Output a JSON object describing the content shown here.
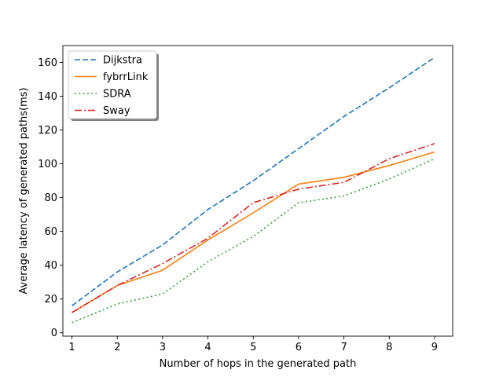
{
  "chart_data": {
    "type": "line",
    "title": "",
    "xlabel": "Number of hops in the generated path",
    "ylabel": "Average latency of generated paths(ms)",
    "x": [
      1,
      2,
      3,
      4,
      5,
      6,
      7,
      8,
      9
    ],
    "xlim": [
      0.8,
      9.4
    ],
    "ylim": [
      -2,
      170
    ],
    "xticks": [
      "1",
      "2",
      "3",
      "4",
      "5",
      "6",
      "7",
      "8",
      "9"
    ],
    "yticks": [
      "0",
      "20",
      "40",
      "60",
      "80",
      "100",
      "120",
      "140",
      "160"
    ],
    "grid": false,
    "legend_position": "top-left",
    "series": [
      {
        "name": "Dijkstra",
        "color": "#1f77b4",
        "dash": "dashed",
        "values": [
          16,
          36,
          52,
          73,
          90,
          109,
          128,
          145,
          163
        ]
      },
      {
        "name": "fybrrLink",
        "color": "#ff7f0e",
        "dash": "solid",
        "values": [
          12,
          28,
          37,
          55,
          71,
          88,
          92,
          99,
          107
        ]
      },
      {
        "name": "SDRA",
        "color": "#2ca02c",
        "dash": "dotted",
        "values": [
          6,
          17,
          23,
          42,
          57,
          77,
          81,
          91,
          103
        ]
      },
      {
        "name": "Sway",
        "color": "#d62728",
        "dash": "dashdot",
        "values": [
          12,
          28,
          41,
          56,
          77,
          85,
          89,
          103,
          112
        ]
      }
    ]
  }
}
